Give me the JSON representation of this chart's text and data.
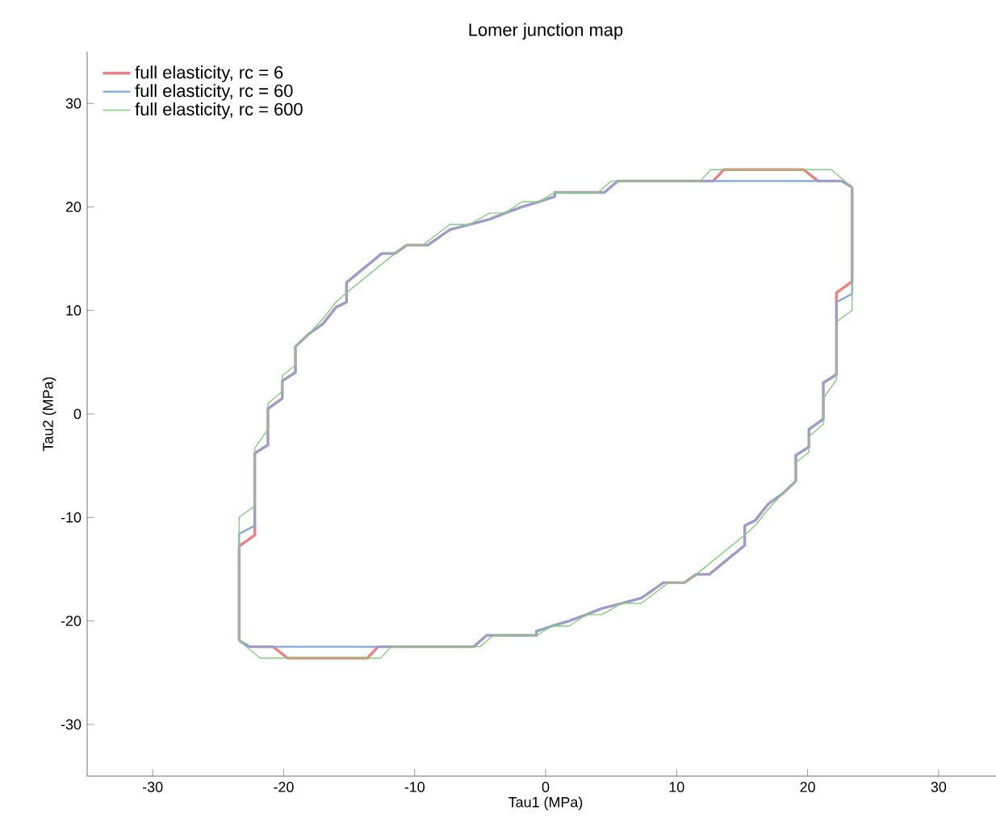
{
  "chart_data": {
    "type": "line",
    "title": "Lomer junction map",
    "xlabel": "Tau1 (MPa)",
    "ylabel": "Tau2 (MPa)",
    "xlim": [
      -35,
      35
    ],
    "ylim": [
      -35,
      35
    ],
    "xticks": [
      -30,
      -20,
      -10,
      0,
      10,
      20,
      30
    ],
    "yticks": [
      -30,
      -20,
      -10,
      0,
      10,
      20,
      30
    ],
    "grid": false,
    "legend": "top left",
    "line_style": "solid",
    "marker": "none",
    "series": [
      {
        "name": "full elasticity, rc = 6",
        "color": "#f08080",
        "x": [
          -23.4,
          -23.4,
          -22.2,
          -22.2,
          -21.2,
          -21.2,
          -20.1,
          -20.1,
          -19.1,
          -19.1,
          -18.1,
          -17.0,
          -16.0,
          -15.2,
          -15.2,
          -12.5,
          -11.5,
          -10.6,
          -9.0,
          -7.3,
          -5.8,
          -4.3,
          -3.1,
          -1.8,
          -0.5,
          0.7,
          0.7,
          4.5,
          5.5,
          12.8,
          13.6,
          19.7,
          20.8,
          22.6,
          23.4
        ],
        "values": [
          -21.9,
          -12.8,
          -11.7,
          -3.8,
          -3.0,
          0.5,
          1.5,
          3.2,
          4.0,
          6.5,
          7.7,
          8.7,
          10.3,
          10.8,
          12.7,
          15.5,
          15.5,
          16.3,
          16.3,
          17.8,
          18.3,
          18.8,
          19.4,
          20.0,
          20.5,
          21.0,
          21.4,
          21.4,
          22.5,
          22.5,
          23.6,
          23.6,
          22.5,
          22.5,
          21.9
        ]
      },
      {
        "name": "full elasticity, rc = 60",
        "color": "#80a8e0",
        "x": [
          -23.4,
          -23.4,
          -22.2,
          -22.2,
          -21.2,
          -21.2,
          -20.1,
          -20.1,
          -19.1,
          -19.1,
          -18.1,
          -17.0,
          -16.0,
          -15.2,
          -15.2,
          -12.5,
          -11.5,
          -10.6,
          -9.0,
          -7.3,
          -5.8,
          -4.3,
          -3.1,
          -1.8,
          -0.5,
          0.7,
          0.7,
          4.5,
          5.5,
          22.6,
          23.4
        ],
        "values": [
          -21.9,
          -11.6,
          -10.8,
          -3.8,
          -3.0,
          0.5,
          1.5,
          3.2,
          4.0,
          6.5,
          7.7,
          8.7,
          10.3,
          10.8,
          12.7,
          15.5,
          15.5,
          16.3,
          16.3,
          17.8,
          18.3,
          18.8,
          19.4,
          20.0,
          20.5,
          21.0,
          21.4,
          21.4,
          22.5,
          22.5,
          21.9
        ]
      },
      {
        "name": "full elasticity, rc = 600",
        "color": "#80d080",
        "x": [
          -23.4,
          -23.4,
          -22.2,
          -22.2,
          -21.2,
          -21.2,
          -20.1,
          -20.1,
          -19.1,
          -19.1,
          -18.1,
          -17.0,
          -16.0,
          -15.2,
          -11.5,
          -10.6,
          -9.4,
          -7.3,
          -5.8,
          -4.3,
          -3.1,
          -1.8,
          -0.5,
          0.7,
          4.0,
          5.0,
          11.8,
          12.6,
          21.8,
          23.4
        ],
        "values": [
          -21.9,
          -10.0,
          -8.9,
          -3.3,
          -1.5,
          1.0,
          2.2,
          3.7,
          4.7,
          6.5,
          7.7,
          9.2,
          10.8,
          11.7,
          15.5,
          16.3,
          16.3,
          18.3,
          18.3,
          19.4,
          19.4,
          20.5,
          20.5,
          21.4,
          21.4,
          22.5,
          22.5,
          23.6,
          23.6,
          21.9
        ]
      },
      {
        "color": "#f08080",
        "x": [
          -23.4,
          -22.6,
          -20.8,
          -19.7,
          -13.6,
          -12.8,
          -5.5,
          -4.5,
          -0.7,
          -0.7,
          0.5,
          1.8,
          3.1,
          4.3,
          5.8,
          7.3,
          9.0,
          10.6,
          11.5,
          12.5,
          15.2,
          15.2,
          16.0,
          17.0,
          18.1,
          19.1,
          19.1,
          20.1,
          20.1,
          21.2,
          21.2,
          22.2,
          22.2,
          23.4,
          23.4
        ],
        "values": [
          -21.9,
          -22.5,
          -22.5,
          -23.6,
          -23.6,
          -22.5,
          -22.5,
          -21.4,
          -21.4,
          -21.0,
          -20.5,
          -20.0,
          -19.4,
          -18.8,
          -18.3,
          -17.8,
          -16.3,
          -16.3,
          -15.5,
          -15.5,
          -12.7,
          -10.8,
          -10.3,
          -8.7,
          -7.7,
          -6.5,
          -4.0,
          -3.2,
          -1.5,
          -0.5,
          3.0,
          3.8,
          11.7,
          12.8,
          21.9
        ]
      },
      {
        "color": "#80a8e0",
        "x": [
          -23.4,
          -22.6,
          -5.5,
          -4.5,
          -0.7,
          -0.7,
          0.5,
          1.8,
          3.1,
          4.3,
          5.8,
          7.3,
          9.0,
          10.6,
          11.5,
          12.5,
          15.2,
          15.2,
          16.0,
          17.0,
          18.1,
          19.1,
          19.1,
          20.1,
          20.1,
          21.2,
          21.2,
          22.2,
          22.2,
          23.4,
          23.4
        ],
        "values": [
          -21.9,
          -22.5,
          -22.5,
          -21.4,
          -21.4,
          -21.0,
          -20.5,
          -20.0,
          -19.4,
          -18.8,
          -18.3,
          -17.8,
          -16.3,
          -16.3,
          -15.5,
          -15.5,
          -12.7,
          -10.8,
          -10.3,
          -8.7,
          -7.7,
          -6.5,
          -4.0,
          -3.2,
          -1.5,
          -0.5,
          3.0,
          3.8,
          10.8,
          11.6,
          21.9
        ]
      },
      {
        "color": "#80d080",
        "x": [
          -23.4,
          -21.8,
          -12.6,
          -11.8,
          -5.0,
          -4.0,
          -0.7,
          0.5,
          1.8,
          3.1,
          4.3,
          5.8,
          7.3,
          9.4,
          10.6,
          11.5,
          15.2,
          16.0,
          17.0,
          18.1,
          19.1,
          19.1,
          20.1,
          20.1,
          21.2,
          21.2,
          22.2,
          22.2,
          23.4,
          23.4
        ],
        "values": [
          -21.9,
          -23.6,
          -23.6,
          -22.5,
          -22.5,
          -21.4,
          -21.4,
          -20.5,
          -20.5,
          -19.4,
          -19.4,
          -18.3,
          -18.3,
          -16.3,
          -16.3,
          -15.5,
          -11.7,
          -10.8,
          -9.2,
          -7.7,
          -6.5,
          -4.7,
          -3.7,
          -2.2,
          -1.0,
          1.5,
          3.3,
          8.9,
          10.0,
          21.9
        ]
      }
    ]
  }
}
